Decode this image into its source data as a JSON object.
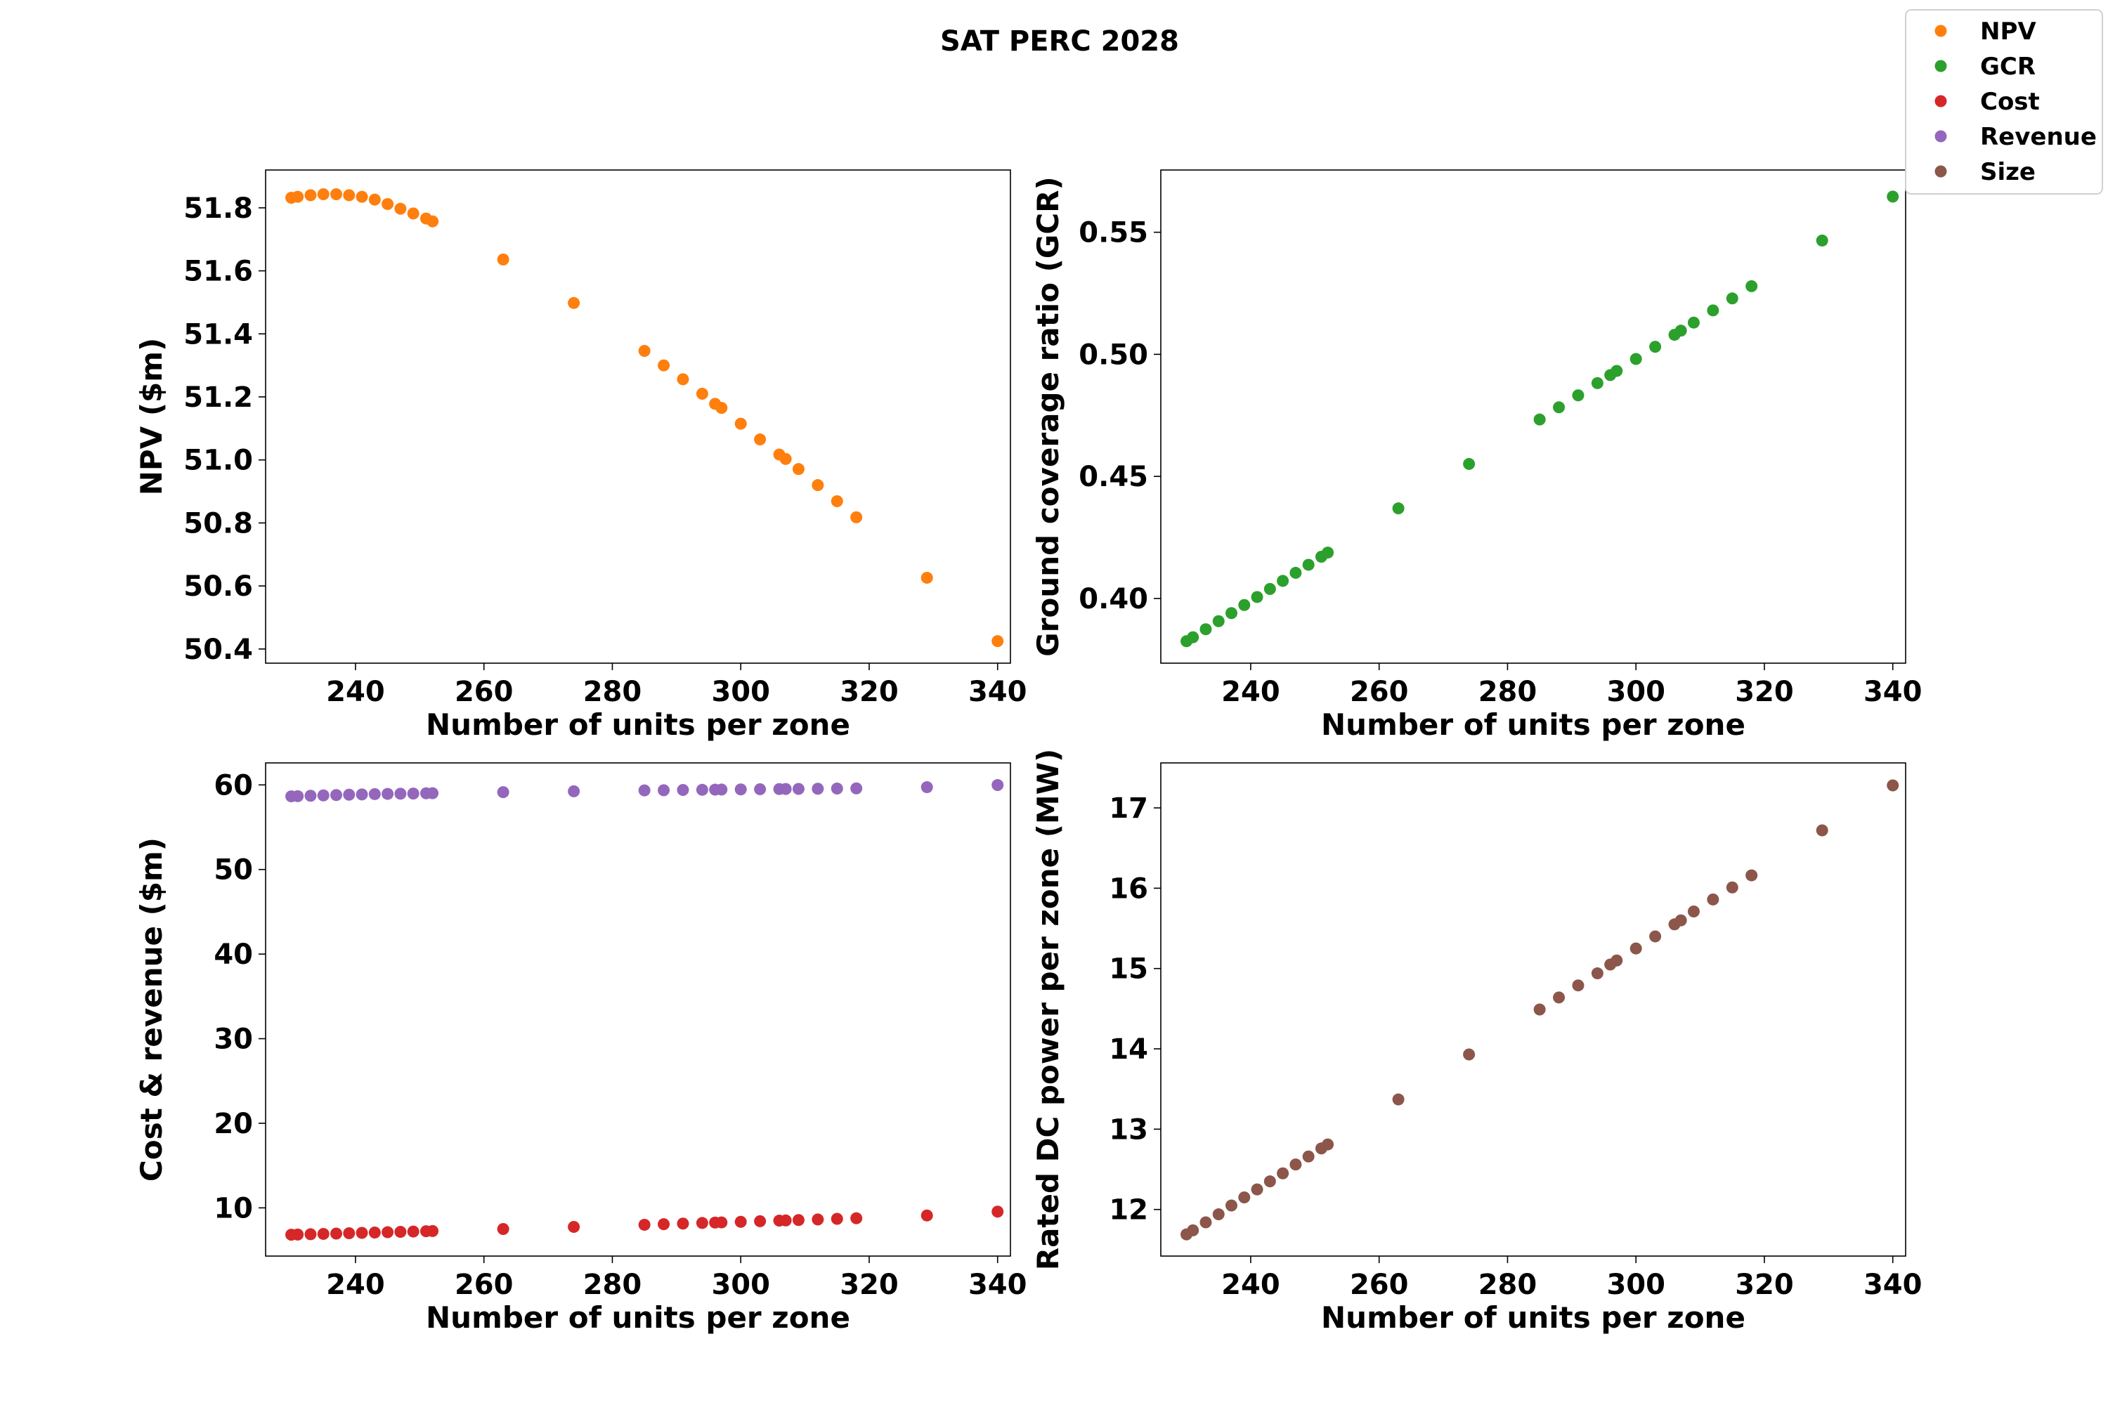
{
  "title": "SAT PERC 2028",
  "legend": {
    "location": "top-right",
    "entries": [
      {
        "label": "NPV",
        "color": "#ff7f0e"
      },
      {
        "label": "GCR",
        "color": "#2ca02c"
      },
      {
        "label": "Cost",
        "color": "#d62728"
      },
      {
        "label": "Revenue",
        "color": "#9467bd"
      },
      {
        "label": "Size",
        "color": "#8c564b"
      }
    ]
  },
  "chart_data": [
    {
      "type": "scatter",
      "xlabel": "Number of units per zone",
      "ylabel": "NPV ($m)",
      "xlim": [
        226,
        342
      ],
      "ylim": [
        50.355,
        51.92
      ],
      "xticks": [
        240,
        260,
        280,
        300,
        320,
        340
      ],
      "yticks": [
        50.4,
        50.6,
        50.8,
        51.0,
        51.2,
        51.4,
        51.6,
        51.8
      ],
      "ytick_labels": [
        "50.4",
        "50.6",
        "50.8",
        "51.0",
        "51.2",
        "51.4",
        "51.6",
        "51.8"
      ],
      "grid": false,
      "series": [
        {
          "name": "NPV",
          "color": "#ff7f0e",
          "points": [
            [
              230,
              51.832
            ],
            [
              231,
              51.835
            ],
            [
              233,
              51.84
            ],
            [
              235,
              51.843
            ],
            [
              237,
              51.843
            ],
            [
              239,
              51.84
            ],
            [
              241,
              51.835
            ],
            [
              243,
              51.826
            ],
            [
              245,
              51.812
            ],
            [
              247,
              51.797
            ],
            [
              249,
              51.782
            ],
            [
              251,
              51.766
            ],
            [
              252,
              51.757
            ],
            [
              263,
              51.636
            ],
            [
              274,
              51.498
            ],
            [
              285,
              51.346
            ],
            [
              288,
              51.3
            ],
            [
              291,
              51.256
            ],
            [
              294,
              51.21
            ],
            [
              296,
              51.178
            ],
            [
              297,
              51.165
            ],
            [
              300,
              51.115
            ],
            [
              303,
              51.065
            ],
            [
              306,
              51.017
            ],
            [
              307,
              51.003
            ],
            [
              309,
              50.971
            ],
            [
              312,
              50.92
            ],
            [
              315,
              50.869
            ],
            [
              318,
              50.818
            ],
            [
              329,
              50.626
            ],
            [
              340,
              50.425
            ]
          ]
        }
      ]
    },
    {
      "type": "scatter",
      "xlabel": "Number of units per zone",
      "ylabel": "Ground coverage ratio (GCR)",
      "xlim": [
        226,
        342
      ],
      "ylim": [
        0.3735,
        0.5755
      ],
      "xticks": [
        240,
        260,
        280,
        300,
        320,
        340
      ],
      "yticks": [
        0.4,
        0.45,
        0.5,
        0.55
      ],
      "ytick_labels": [
        "0.40",
        "0.45",
        "0.50",
        "0.55"
      ],
      "grid": false,
      "series": [
        {
          "name": "GCR",
          "color": "#2ca02c",
          "points": [
            [
              230,
              0.3825
            ],
            [
              231,
              0.3841
            ],
            [
              233,
              0.3874
            ],
            [
              235,
              0.3907
            ],
            [
              237,
              0.394
            ],
            [
              239,
              0.3973
            ],
            [
              241,
              0.4006
            ],
            [
              243,
              0.4039
            ],
            [
              245,
              0.4072
            ],
            [
              247,
              0.4105
            ],
            [
              249,
              0.4138
            ],
            [
              251,
              0.4171
            ],
            [
              252,
              0.4188
            ],
            [
              263,
              0.4369
            ],
            [
              274,
              0.4551
            ],
            [
              285,
              0.4733
            ],
            [
              288,
              0.4783
            ],
            [
              291,
              0.4832
            ],
            [
              294,
              0.4882
            ],
            [
              296,
              0.4915
            ],
            [
              297,
              0.4932
            ],
            [
              300,
              0.4981
            ],
            [
              303,
              0.5031
            ],
            [
              306,
              0.508
            ],
            [
              307,
              0.5097
            ],
            [
              309,
              0.513
            ],
            [
              312,
              0.518
            ],
            [
              315,
              0.5229
            ],
            [
              318,
              0.5279
            ],
            [
              329,
              0.5466
            ],
            [
              340,
              0.5646
            ]
          ]
        }
      ]
    },
    {
      "type": "scatter",
      "xlabel": "Number of units per zone",
      "ylabel": "Cost & revenue ($m)",
      "xlim": [
        226,
        342
      ],
      "ylim": [
        4.3,
        62.6
      ],
      "xticks": [
        240,
        260,
        280,
        300,
        320,
        340
      ],
      "yticks": [
        10,
        20,
        30,
        40,
        50,
        60
      ],
      "ytick_labels": [
        "10",
        "20",
        "30",
        "40",
        "50",
        "60"
      ],
      "grid": false,
      "series": [
        {
          "name": "Cost",
          "color": "#d62728",
          "points": [
            [
              230,
              6.82
            ],
            [
              231,
              6.84
            ],
            [
              233,
              6.88
            ],
            [
              235,
              6.92
            ],
            [
              237,
              6.96
            ],
            [
              239,
              7.0
            ],
            [
              241,
              7.04
            ],
            [
              243,
              7.08
            ],
            [
              245,
              7.12
            ],
            [
              247,
              7.16
            ],
            [
              249,
              7.2
            ],
            [
              251,
              7.24
            ],
            [
              252,
              7.26
            ],
            [
              263,
              7.5
            ],
            [
              274,
              7.75
            ],
            [
              285,
              8.0
            ],
            [
              288,
              8.07
            ],
            [
              291,
              8.14
            ],
            [
              294,
              8.21
            ],
            [
              296,
              8.26
            ],
            [
              297,
              8.28
            ],
            [
              300,
              8.35
            ],
            [
              303,
              8.42
            ],
            [
              306,
              8.49
            ],
            [
              307,
              8.51
            ],
            [
              309,
              8.56
            ],
            [
              312,
              8.63
            ],
            [
              315,
              8.7
            ],
            [
              318,
              8.77
            ],
            [
              329,
              9.1
            ],
            [
              340,
              9.55
            ]
          ]
        },
        {
          "name": "Revenue",
          "color": "#9467bd",
          "points": [
            [
              230,
              58.65
            ],
            [
              231,
              58.67
            ],
            [
              233,
              58.72
            ],
            [
              235,
              58.76
            ],
            [
              237,
              58.8
            ],
            [
              239,
              58.84
            ],
            [
              241,
              58.87
            ],
            [
              243,
              58.91
            ],
            [
              245,
              58.94
            ],
            [
              247,
              58.96
            ],
            [
              249,
              58.98
            ],
            [
              251,
              59.01
            ],
            [
              252,
              59.02
            ],
            [
              263,
              59.14
            ],
            [
              274,
              59.25
            ],
            [
              285,
              59.35
            ],
            [
              288,
              59.37
            ],
            [
              291,
              59.4
            ],
            [
              294,
              59.42
            ],
            [
              296,
              59.44
            ],
            [
              297,
              59.45
            ],
            [
              300,
              59.47
            ],
            [
              303,
              59.49
            ],
            [
              306,
              59.51
            ],
            [
              307,
              59.52
            ],
            [
              309,
              59.53
            ],
            [
              312,
              59.55
            ],
            [
              315,
              59.57
            ],
            [
              318,
              59.59
            ],
            [
              329,
              59.73
            ],
            [
              340,
              59.98
            ]
          ]
        }
      ]
    },
    {
      "type": "scatter",
      "xlabel": "Number of units per zone",
      "ylabel": "Rated DC power per zone (MW)",
      "xlim": [
        226,
        342
      ],
      "ylim": [
        11.42,
        17.56
      ],
      "xticks": [
        240,
        260,
        280,
        300,
        320,
        340
      ],
      "yticks": [
        12,
        13,
        14,
        15,
        16,
        17
      ],
      "ytick_labels": [
        "12",
        "13",
        "14",
        "15",
        "16",
        "17"
      ],
      "grid": false,
      "series": [
        {
          "name": "Size",
          "color": "#8c564b",
          "points": [
            [
              230,
              11.69
            ],
            [
              231,
              11.74
            ],
            [
              233,
              11.84
            ],
            [
              235,
              11.94
            ],
            [
              237,
              12.05
            ],
            [
              239,
              12.15
            ],
            [
              241,
              12.25
            ],
            [
              243,
              12.35
            ],
            [
              245,
              12.45
            ],
            [
              247,
              12.56
            ],
            [
              249,
              12.66
            ],
            [
              251,
              12.76
            ],
            [
              252,
              12.81
            ],
            [
              263,
              13.37
            ],
            [
              274,
              13.93
            ],
            [
              285,
              14.49
            ],
            [
              288,
              14.64
            ],
            [
              291,
              14.79
            ],
            [
              294,
              14.94
            ],
            [
              296,
              15.05
            ],
            [
              297,
              15.1
            ],
            [
              300,
              15.25
            ],
            [
              303,
              15.4
            ],
            [
              306,
              15.55
            ],
            [
              307,
              15.6
            ],
            [
              309,
              15.71
            ],
            [
              312,
              15.86
            ],
            [
              315,
              16.01
            ],
            [
              318,
              16.16
            ],
            [
              329,
              16.72
            ],
            [
              340,
              17.28
            ]
          ]
        }
      ]
    }
  ]
}
